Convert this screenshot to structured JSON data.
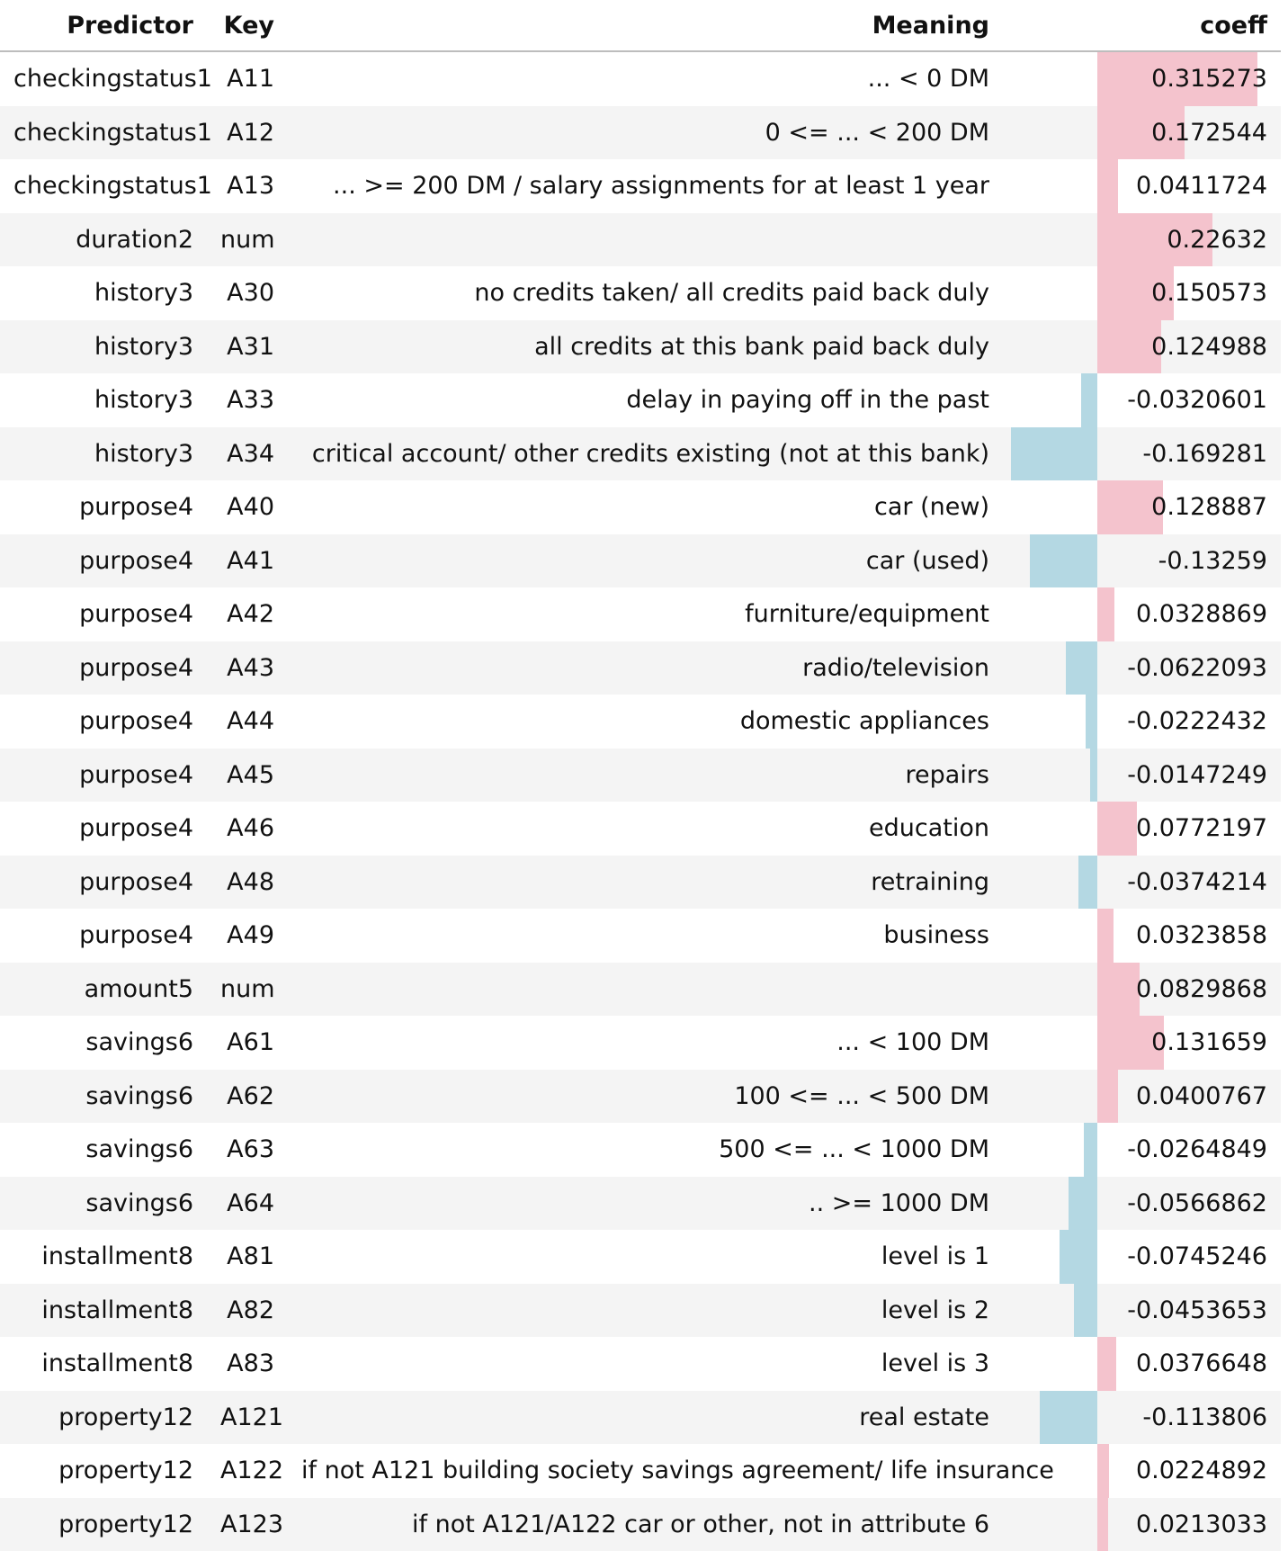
{
  "columns": {
    "predictor": "Predictor",
    "key": "Key",
    "meaning": "Meaning",
    "coeff": "coeff"
  },
  "colors": {
    "positive_bar": "#f4c3cd",
    "negative_bar": "#b4d8e3",
    "stripe": "#f4f4f4"
  },
  "rows": [
    {
      "predictor": "checkingstatus1",
      "key": "A11",
      "meaning": "... < 0 DM",
      "coeff": "0.315273",
      "value": 0.315273
    },
    {
      "predictor": "checkingstatus1",
      "key": "A12",
      "meaning": "0 <= ... < 200 DM",
      "coeff": "0.172544",
      "value": 0.172544
    },
    {
      "predictor": "checkingstatus1",
      "key": "A13",
      "meaning": "... >= 200 DM / salary assignments for at least 1 year",
      "coeff": "0.0411724",
      "value": 0.0411724
    },
    {
      "predictor": "duration2",
      "key": "num",
      "meaning": "",
      "coeff": "0.22632",
      "value": 0.22632
    },
    {
      "predictor": "history3",
      "key": "A30",
      "meaning": "no credits taken/ all credits paid back duly",
      "coeff": "0.150573",
      "value": 0.150573
    },
    {
      "predictor": "history3",
      "key": "A31",
      "meaning": "all credits at this bank paid back duly",
      "coeff": "0.124988",
      "value": 0.124988
    },
    {
      "predictor": "history3",
      "key": "A33",
      "meaning": "delay in paying off in the past",
      "coeff": "-0.0320601",
      "value": -0.0320601
    },
    {
      "predictor": "history3",
      "key": "A34",
      "meaning": "critical account/ other credits existing (not at this bank)",
      "coeff": "-0.169281",
      "value": -0.169281
    },
    {
      "predictor": "purpose4",
      "key": "A40",
      "meaning": "car (new)",
      "coeff": "0.128887",
      "value": 0.128887
    },
    {
      "predictor": "purpose4",
      "key": "A41",
      "meaning": "car (used)",
      "coeff": "-0.13259",
      "value": -0.13259
    },
    {
      "predictor": "purpose4",
      "key": "A42",
      "meaning": "furniture/equipment",
      "coeff": "0.0328869",
      "value": 0.0328869
    },
    {
      "predictor": "purpose4",
      "key": "A43",
      "meaning": "radio/television",
      "coeff": "-0.0622093",
      "value": -0.0622093
    },
    {
      "predictor": "purpose4",
      "key": "A44",
      "meaning": "domestic appliances",
      "coeff": "-0.0222432",
      "value": -0.0222432
    },
    {
      "predictor": "purpose4",
      "key": "A45",
      "meaning": "repairs",
      "coeff": "-0.0147249",
      "value": -0.0147249
    },
    {
      "predictor": "purpose4",
      "key": "A46",
      "meaning": "education",
      "coeff": "0.0772197",
      "value": 0.0772197
    },
    {
      "predictor": "purpose4",
      "key": "A48",
      "meaning": "retraining",
      "coeff": "-0.0374214",
      "value": -0.0374214
    },
    {
      "predictor": "purpose4",
      "key": "A49",
      "meaning": "business",
      "coeff": "0.0323858",
      "value": 0.0323858
    },
    {
      "predictor": "amount5",
      "key": "num",
      "meaning": "",
      "coeff": "0.0829868",
      "value": 0.0829868
    },
    {
      "predictor": "savings6",
      "key": "A61",
      "meaning": "... < 100 DM",
      "coeff": "0.131659",
      "value": 0.131659
    },
    {
      "predictor": "savings6",
      "key": "A62",
      "meaning": "100 <= ... < 500 DM",
      "coeff": "0.0400767",
      "value": 0.0400767
    },
    {
      "predictor": "savings6",
      "key": "A63",
      "meaning": "500 <= ... < 1000 DM",
      "coeff": "-0.0264849",
      "value": -0.0264849
    },
    {
      "predictor": "savings6",
      "key": "A64",
      "meaning": ".. >= 1000 DM",
      "coeff": "-0.0566862",
      "value": -0.0566862
    },
    {
      "predictor": "installment8",
      "key": "A81",
      "meaning": "level is 1",
      "coeff": "-0.0745246",
      "value": -0.0745246
    },
    {
      "predictor": "installment8",
      "key": "A82",
      "meaning": "level is 2",
      "coeff": "-0.0453653",
      "value": -0.0453653
    },
    {
      "predictor": "installment8",
      "key": "A83",
      "meaning": "level is 3",
      "coeff": "0.0376648",
      "value": 0.0376648
    },
    {
      "predictor": "property12",
      "key": "A121",
      "meaning": "real estate",
      "coeff": "-0.113806",
      "value": -0.113806
    },
    {
      "predictor": "property12",
      "key": "A122",
      "meaning": "if not A121 building society savings agreement/ life insurance",
      "coeff": "0.0224892",
      "value": 0.0224892
    },
    {
      "predictor": "property12",
      "key": "A123",
      "meaning": "if not A121/A122 car or other, not in attribute 6",
      "coeff": "0.0213033",
      "value": 0.0213033
    }
  ]
}
